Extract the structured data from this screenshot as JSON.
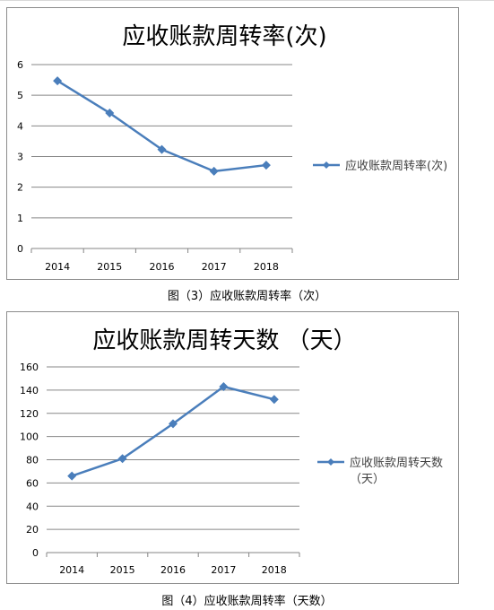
{
  "charts": [
    {
      "title": "应收账款周转率(次)",
      "legend_lines": [
        "应收账款周转率(次)"
      ],
      "caption": "图（3）应收账款周转率（次）"
    },
    {
      "title": "应收账款周转天数 （天）",
      "legend_lines": [
        "应收账款周转天数",
        "（天）"
      ],
      "caption": "图（4）应收账款周转率（天数）"
    }
  ],
  "chart_data": [
    {
      "type": "line",
      "title": "应收账款周转率(次)",
      "categories": [
        "2014",
        "2015",
        "2016",
        "2017",
        "2018"
      ],
      "series": [
        {
          "name": "应收账款周转率(次)",
          "values": [
            5.47,
            4.42,
            3.23,
            2.52,
            2.72
          ],
          "color": "#4a7ebb"
        }
      ],
      "ylim": [
        0,
        6
      ],
      "yticks": [
        0,
        1,
        2,
        3,
        4,
        5,
        6
      ],
      "grid": true,
      "legend": "right"
    },
    {
      "type": "line",
      "title": "应收账款周转天数 （天）",
      "categories": [
        "2014",
        "2015",
        "2016",
        "2017",
        "2018"
      ],
      "series": [
        {
          "name": "应收账款周转天数（天）",
          "values": [
            66,
            81,
            111,
            143,
            132
          ],
          "color": "#4a7ebb"
        }
      ],
      "ylim": [
        0,
        160
      ],
      "yticks": [
        0,
        20,
        40,
        60,
        80,
        100,
        120,
        140,
        160
      ],
      "grid": true,
      "legend": "right"
    }
  ]
}
